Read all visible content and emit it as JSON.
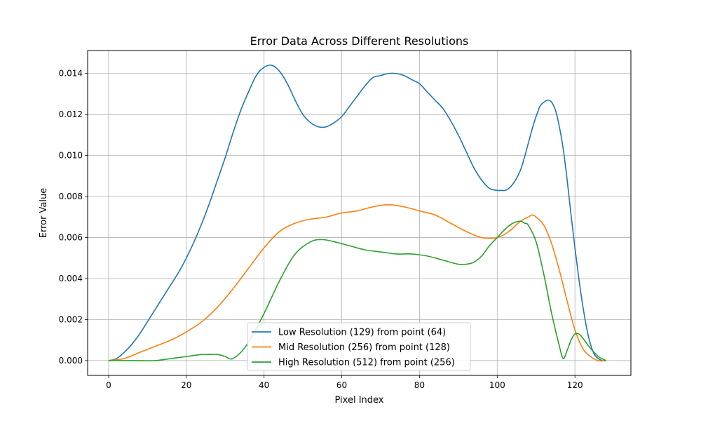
{
  "chart_data": {
    "type": "line",
    "title": "Error Data Across Different Resolutions",
    "xlabel": "Pixel Index",
    "ylabel": "Error Value",
    "xlim": [
      -5.4,
      134.4
    ],
    "ylim": [
      -0.00072,
      0.01512
    ],
    "x_ticks": [
      0,
      20,
      40,
      60,
      80,
      100,
      120
    ],
    "y_ticks": [
      0.0,
      0.002,
      0.004,
      0.006,
      0.008,
      0.01,
      0.012,
      0.014
    ],
    "x_tick_labels": [
      "0",
      "20",
      "40",
      "60",
      "80",
      "100",
      "120"
    ],
    "y_tick_labels": [
      "0.000",
      "0.002",
      "0.004",
      "0.006",
      "0.008",
      "0.010",
      "0.012",
      "0.014"
    ],
    "grid": true,
    "legend_position": "lower center",
    "series": [
      {
        "name": "Low Resolution (129) from point (64)",
        "color": "#1f77b4",
        "x": [
          0,
          2,
          4,
          6,
          8,
          10,
          12,
          14,
          16,
          18,
          20,
          22,
          24,
          26,
          28,
          30,
          32,
          34,
          36,
          38,
          40,
          42,
          44,
          46,
          48,
          50,
          52,
          54,
          56,
          58,
          60,
          62,
          64,
          66,
          68,
          70,
          72,
          74,
          76,
          78,
          80,
          82,
          84,
          86,
          88,
          90,
          92,
          94,
          96,
          98,
          100,
          101,
          102,
          103,
          104,
          105,
          106,
          107,
          108,
          109,
          110,
          111,
          112,
          113,
          114,
          115,
          116,
          117,
          118,
          119,
          120,
          121,
          122,
          123,
          124,
          125,
          126,
          127,
          128
        ],
        "y": [
          0.0,
          0.0001,
          0.0004,
          0.0008,
          0.0013,
          0.0019,
          0.0025,
          0.0031,
          0.0037,
          0.0043,
          0.005,
          0.0058,
          0.0067,
          0.0077,
          0.0088,
          0.0099,
          0.0111,
          0.0122,
          0.0131,
          0.0139,
          0.0143,
          0.0144,
          0.0141,
          0.0135,
          0.0127,
          0.012,
          0.0116,
          0.0114,
          0.0114,
          0.0116,
          0.0119,
          0.0124,
          0.0129,
          0.0134,
          0.0138,
          0.0139,
          0.014,
          0.014,
          0.0139,
          0.0137,
          0.0135,
          0.0131,
          0.0127,
          0.0123,
          0.0117,
          0.011,
          0.0102,
          0.0094,
          0.0088,
          0.0084,
          0.0083,
          0.0083,
          0.0083,
          0.0084,
          0.0086,
          0.0089,
          0.0093,
          0.0099,
          0.0106,
          0.0113,
          0.0119,
          0.0124,
          0.0126,
          0.0127,
          0.0126,
          0.0122,
          0.0114,
          0.0103,
          0.0088,
          0.0071,
          0.0055,
          0.004,
          0.0027,
          0.0016,
          0.0008,
          0.0003,
          0.0001,
          0.0,
          0.0
        ]
      },
      {
        "name": "Mid Resolution (256) from point (128)",
        "color": "#ff7f0e",
        "x": [
          0,
          4,
          8,
          12,
          16,
          20,
          24,
          28,
          32,
          36,
          40,
          44,
          48,
          52,
          56,
          60,
          64,
          68,
          72,
          76,
          80,
          84,
          88,
          92,
          96,
          100,
          103,
          106,
          108,
          109,
          110,
          112,
          114,
          116,
          118,
          120,
          122,
          124,
          126,
          128
        ],
        "y": [
          0.0,
          0.0001,
          0.0004,
          0.0007,
          0.001,
          0.0014,
          0.0019,
          0.0026,
          0.0035,
          0.0045,
          0.0055,
          0.0063,
          0.0067,
          0.0069,
          0.007,
          0.0072,
          0.0073,
          0.0075,
          0.0076,
          0.0075,
          0.0073,
          0.0071,
          0.0067,
          0.0063,
          0.006,
          0.006,
          0.0063,
          0.0068,
          0.007,
          0.0071,
          0.007,
          0.0066,
          0.0057,
          0.0044,
          0.0029,
          0.0015,
          0.0006,
          0.0002,
          0.0,
          0.0
        ]
      },
      {
        "name": "High Resolution (512) from point (256)",
        "color": "#2ca02c",
        "x": [
          0,
          4,
          8,
          12,
          16,
          20,
          24,
          26,
          28,
          30,
          31,
          32,
          34,
          36,
          40,
          44,
          48,
          52,
          55,
          58,
          62,
          66,
          70,
          74,
          78,
          82,
          86,
          90,
          92,
          94,
          96,
          98,
          100,
          102,
          104,
          106,
          107,
          108,
          110,
          112,
          114,
          116,
          117,
          118,
          119,
          120,
          121,
          122,
          124,
          126,
          128
        ],
        "y": [
          0.0,
          0.0,
          0.0,
          0.0,
          0.0001,
          0.0002,
          0.0003,
          0.0003,
          0.0003,
          0.0002,
          0.0001,
          0.0001,
          0.0004,
          0.0009,
          0.0023,
          0.0039,
          0.0052,
          0.0058,
          0.0059,
          0.0058,
          0.0056,
          0.0054,
          0.0053,
          0.0052,
          0.0052,
          0.0051,
          0.0049,
          0.0047,
          0.0047,
          0.0048,
          0.0051,
          0.0056,
          0.006,
          0.0064,
          0.0067,
          0.0068,
          0.0067,
          0.0066,
          0.0058,
          0.0042,
          0.0023,
          0.0007,
          0.0001,
          0.0005,
          0.001,
          0.0013,
          0.0013,
          0.0011,
          0.0006,
          0.0002,
          0.0
        ]
      }
    ]
  }
}
